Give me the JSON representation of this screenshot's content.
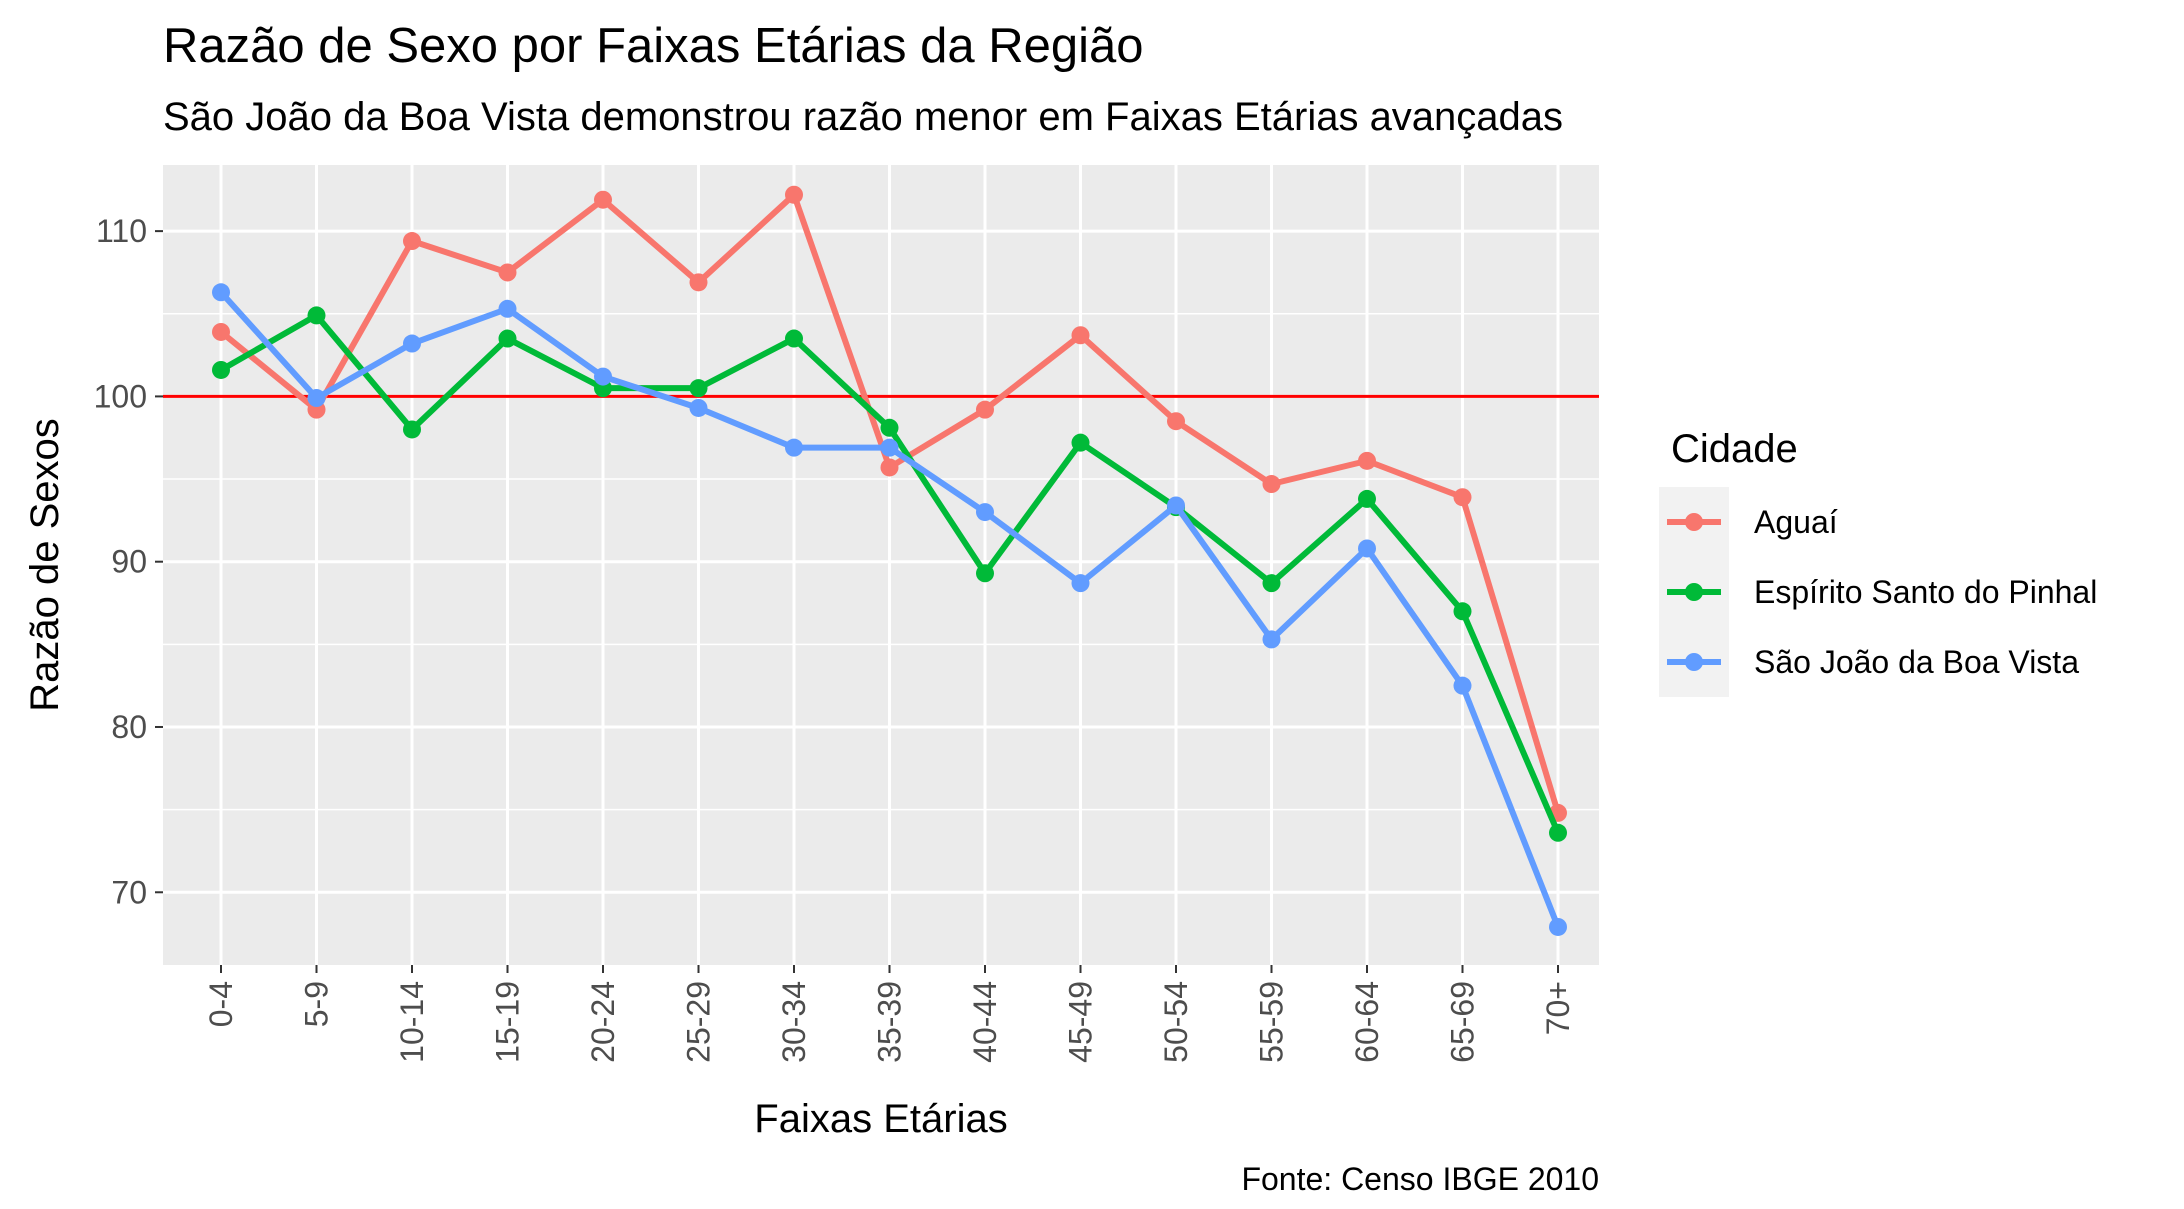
{
  "chart_data": {
    "type": "line",
    "title": "Razão de Sexo por Faixas Etárias da Região",
    "subtitle": "São João da Boa Vista demonstrou razão menor em Faixas Etárias avançadas",
    "xlabel": "Faixas Etárias",
    "ylabel": "Razão de Sexos",
    "caption": "Fonte: Censo IBGE 2010",
    "categories": [
      "0-4",
      "5-9",
      "10-14",
      "15-19",
      "20-24",
      "25-29",
      "30-34",
      "35-39",
      "40-44",
      "45-49",
      "50-54",
      "55-59",
      "60-64",
      "65-69",
      "70+"
    ],
    "ylim": [
      65.6,
      114.0
    ],
    "yticks": [
      70,
      80,
      90,
      100,
      110
    ],
    "reference_line": {
      "y": 100,
      "color": "#ff0000"
    },
    "grid": true,
    "legend": {
      "title": "Cidade",
      "position": "right"
    },
    "series": [
      {
        "name": "Aguaí",
        "color": "#f8766d",
        "values": [
          103.9,
          99.2,
          109.4,
          107.5,
          111.9,
          106.9,
          112.2,
          95.7,
          99.2,
          103.7,
          98.5,
          94.7,
          96.1,
          93.9,
          74.8
        ]
      },
      {
        "name": "Espírito Santo do Pinhal",
        "color": "#00ba38",
        "values": [
          101.6,
          104.9,
          98.0,
          103.5,
          100.5,
          100.5,
          103.5,
          98.1,
          89.3,
          97.2,
          93.3,
          88.7,
          93.8,
          87.0,
          73.6
        ]
      },
      {
        "name": "São João da Boa Vista",
        "color": "#619cff",
        "values": [
          106.3,
          99.9,
          103.2,
          105.3,
          101.2,
          99.3,
          96.9,
          96.9,
          93.0,
          88.7,
          93.4,
          85.3,
          90.8,
          82.5,
          67.9
        ]
      }
    ]
  }
}
